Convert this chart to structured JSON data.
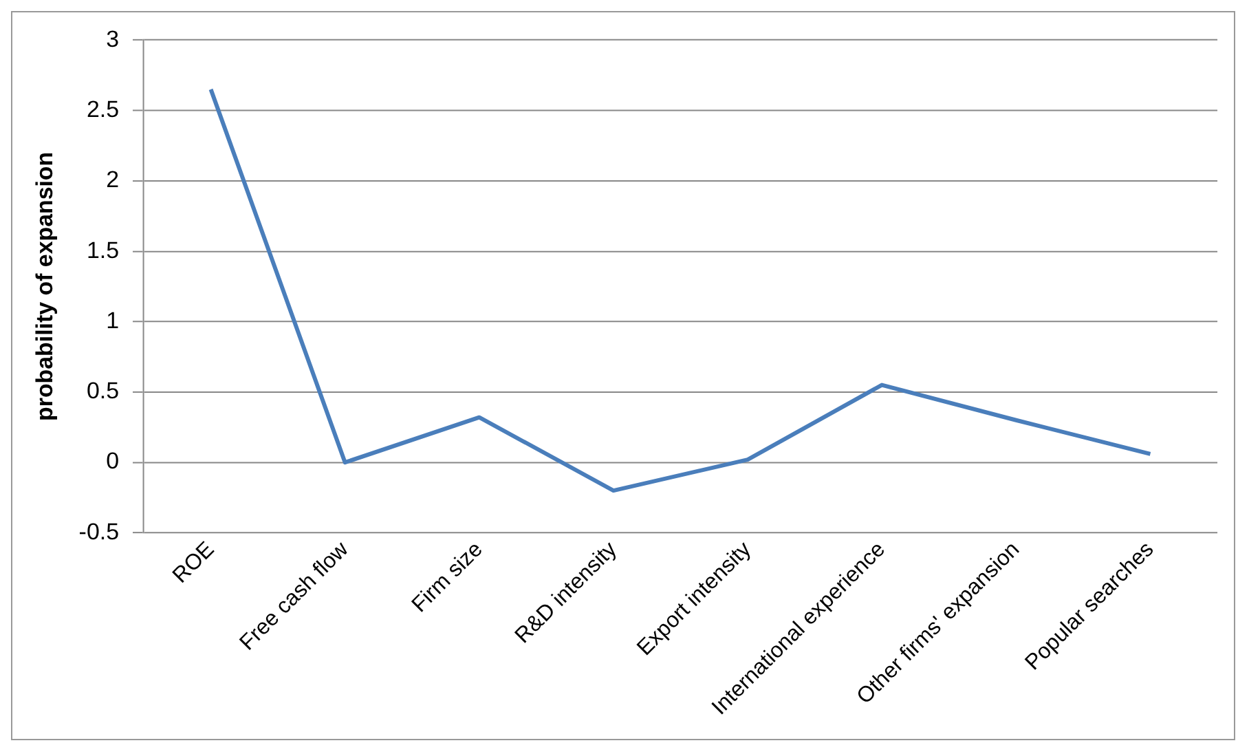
{
  "chart_data": {
    "type": "line",
    "ylabel": "probability of expansion",
    "categories": [
      "ROE",
      "Free cash flow",
      "Firm size",
      "R&D intensity",
      "Export intensity",
      "International experience",
      "Other firms' expansion",
      "Popular searches"
    ],
    "series": [
      {
        "color": "#4a7ebb",
        "values": [
          2.65,
          0,
          0.32,
          -0.2,
          0.02,
          0.55,
          0.3,
          0.06
        ]
      }
    ],
    "ylim": [
      -0.5,
      3
    ],
    "yticks": [
      -0.5,
      0,
      0.5,
      1,
      1.5,
      2,
      2.5,
      3
    ],
    "grid": "y",
    "legend": false,
    "marker": "none",
    "line_style": "solid"
  }
}
